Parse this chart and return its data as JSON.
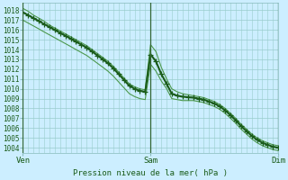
{
  "bg_color": "#cceeff",
  "plot_bg_color": "#cceeff",
  "grid_color": "#99cccc",
  "line_dark": "#1a5c1a",
  "line_light": "#4d994d",
  "ylim": [
    1003.5,
    1018.8
  ],
  "yticks": [
    1004,
    1005,
    1006,
    1007,
    1008,
    1009,
    1010,
    1011,
    1012,
    1013,
    1014,
    1015,
    1016,
    1017,
    1018
  ],
  "xtick_labels": [
    "Ven",
    "Sam",
    "Dim"
  ],
  "xtick_pos": [
    0.0,
    0.5,
    1.0
  ],
  "xlabel": "Pression niveau de la mer( hPa )",
  "vline_color": "#336633",
  "n_vertical_grid": 24,
  "main_x": [
    0.0,
    0.021,
    0.042,
    0.063,
    0.083,
    0.104,
    0.125,
    0.146,
    0.167,
    0.188,
    0.208,
    0.229,
    0.25,
    0.271,
    0.292,
    0.313,
    0.333,
    0.354,
    0.375,
    0.396,
    0.417,
    0.438,
    0.458,
    0.479,
    0.5,
    0.521,
    0.542,
    0.563,
    0.583,
    0.604,
    0.625,
    0.646,
    0.667,
    0.688,
    0.708,
    0.729,
    0.75,
    0.771,
    0.792,
    0.813,
    0.833,
    0.854,
    0.875,
    0.896,
    0.917,
    0.938,
    0.958,
    0.979,
    1.0
  ],
  "main_y": [
    1017.8,
    1017.5,
    1017.2,
    1016.9,
    1016.6,
    1016.3,
    1016.0,
    1015.7,
    1015.4,
    1015.1,
    1014.8,
    1014.5,
    1014.2,
    1013.8,
    1013.4,
    1013.0,
    1012.6,
    1012.1,
    1011.5,
    1010.9,
    1010.3,
    1010.0,
    1009.8,
    1009.7,
    1013.5,
    1012.8,
    1011.5,
    1010.5,
    1009.5,
    1009.3,
    1009.2,
    1009.15,
    1009.1,
    1009.0,
    1008.9,
    1008.7,
    1008.5,
    1008.2,
    1007.8,
    1007.3,
    1006.8,
    1006.2,
    1005.7,
    1005.2,
    1004.8,
    1004.5,
    1004.3,
    1004.1,
    1004.0
  ],
  "upper_y": [
    1018.2,
    1017.9,
    1017.5,
    1017.2,
    1016.9,
    1016.5,
    1016.2,
    1015.9,
    1015.6,
    1015.3,
    1015.0,
    1014.7,
    1014.4,
    1014.0,
    1013.6,
    1013.2,
    1012.8,
    1012.3,
    1011.7,
    1011.1,
    1010.5,
    1010.2,
    1010.0,
    1009.9,
    1014.5,
    1013.8,
    1012.2,
    1011.0,
    1010.0,
    1009.7,
    1009.5,
    1009.4,
    1009.3,
    1009.2,
    1009.1,
    1008.9,
    1008.7,
    1008.4,
    1008.0,
    1007.5,
    1007.0,
    1006.4,
    1005.9,
    1005.4,
    1005.0,
    1004.7,
    1004.5,
    1004.3,
    1004.2
  ],
  "lower_y": [
    1017.0,
    1016.7,
    1016.4,
    1016.1,
    1015.8,
    1015.5,
    1015.2,
    1014.9,
    1014.6,
    1014.3,
    1014.0,
    1013.7,
    1013.4,
    1013.0,
    1012.6,
    1012.2,
    1011.8,
    1011.3,
    1010.7,
    1010.1,
    1009.5,
    1009.2,
    1009.0,
    1008.9,
    1012.5,
    1011.8,
    1010.8,
    1010.0,
    1009.0,
    1008.9,
    1008.8,
    1008.8,
    1008.8,
    1008.7,
    1008.6,
    1008.4,
    1008.2,
    1007.9,
    1007.5,
    1007.0,
    1006.5,
    1005.9,
    1005.4,
    1004.9,
    1004.5,
    1004.2,
    1004.0,
    1003.8,
    1003.7
  ]
}
